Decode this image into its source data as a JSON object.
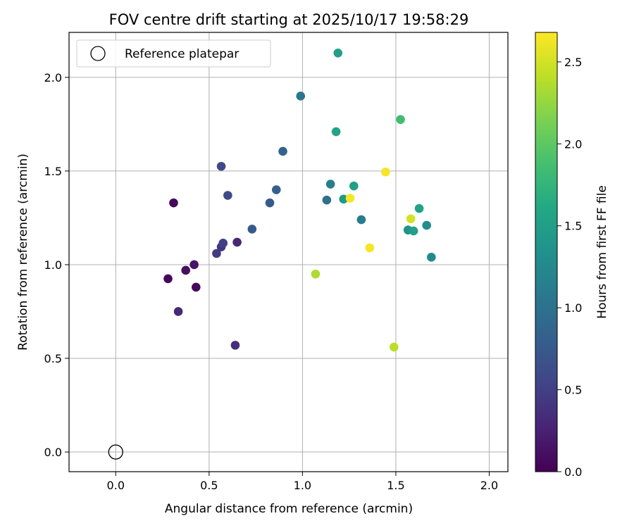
{
  "chart_data": {
    "type": "scatter",
    "title": "FOV centre drift starting at 2025/10/17 19:58:29",
    "xlabel": "Angular distance from reference (arcmin)",
    "ylabel": "Rotation from reference (arcmin)",
    "xlim": [
      -0.25,
      2.1
    ],
    "ylim": [
      -0.105,
      2.24
    ],
    "x_ticks": [
      0.0,
      0.5,
      1.0,
      1.5,
      2.0
    ],
    "x_tick_labels": [
      "0.0",
      "0.5",
      "1.0",
      "1.5",
      "2.0"
    ],
    "y_ticks": [
      0.0,
      0.5,
      1.0,
      1.5,
      2.0
    ],
    "y_tick_labels": [
      "0.0",
      "0.5",
      "1.0",
      "1.5",
      "2.0"
    ],
    "grid": true,
    "legend": {
      "placement": "top-left",
      "entries": [
        "Reference platepar"
      ]
    },
    "reference_point": {
      "x": 0.0,
      "y": 0.0
    },
    "colorbar": {
      "label": "Hours from first FF file",
      "colormap": "viridis",
      "range": [
        0.0,
        2.68
      ],
      "ticks": [
        0.0,
        0.5,
        1.0,
        1.5,
        2.0,
        2.5
      ],
      "tick_labels": [
        "0.0",
        "0.5",
        "1.0",
        "1.5",
        "2.0",
        "2.5"
      ]
    },
    "points": [
      {
        "x": 0.31,
        "y": 1.33,
        "c": 0.05
      },
      {
        "x": 0.28,
        "y": 0.925,
        "c": 0.05
      },
      {
        "x": 0.43,
        "y": 0.88,
        "c": 0.05
      },
      {
        "x": 0.375,
        "y": 0.97,
        "c": 0.1
      },
      {
        "x": 0.42,
        "y": 1.0,
        "c": 0.15
      },
      {
        "x": 0.335,
        "y": 0.75,
        "c": 0.3
      },
      {
        "x": 0.65,
        "y": 1.12,
        "c": 0.3
      },
      {
        "x": 0.64,
        "y": 0.57,
        "c": 0.35
      },
      {
        "x": 0.565,
        "y": 1.095,
        "c": 0.4
      },
      {
        "x": 0.54,
        "y": 1.06,
        "c": 0.45
      },
      {
        "x": 0.575,
        "y": 1.115,
        "c": 0.5
      },
      {
        "x": 0.565,
        "y": 1.525,
        "c": 0.6
      },
      {
        "x": 0.6,
        "y": 1.37,
        "c": 0.6
      },
      {
        "x": 0.73,
        "y": 1.19,
        "c": 0.75
      },
      {
        "x": 0.825,
        "y": 1.33,
        "c": 0.75
      },
      {
        "x": 0.86,
        "y": 1.4,
        "c": 0.8
      },
      {
        "x": 0.895,
        "y": 1.605,
        "c": 0.85
      },
      {
        "x": 0.99,
        "y": 1.9,
        "c": 1.05
      },
      {
        "x": 1.15,
        "y": 1.43,
        "c": 1.15
      },
      {
        "x": 1.13,
        "y": 1.345,
        "c": 1.0
      },
      {
        "x": 1.315,
        "y": 1.24,
        "c": 1.1
      },
      {
        "x": 1.69,
        "y": 1.04,
        "c": 1.25
      },
      {
        "x": 1.665,
        "y": 1.21,
        "c": 1.3
      },
      {
        "x": 1.565,
        "y": 1.185,
        "c": 1.35
      },
      {
        "x": 1.22,
        "y": 1.35,
        "c": 1.45
      },
      {
        "x": 1.275,
        "y": 1.42,
        "c": 1.5
      },
      {
        "x": 1.595,
        "y": 1.18,
        "c": 1.5
      },
      {
        "x": 1.625,
        "y": 1.3,
        "c": 1.55
      },
      {
        "x": 1.18,
        "y": 1.71,
        "c": 1.55
      },
      {
        "x": 1.19,
        "y": 2.13,
        "c": 1.5
      },
      {
        "x": 1.525,
        "y": 1.775,
        "c": 1.85
      },
      {
        "x": 1.07,
        "y": 0.95,
        "c": 2.35
      },
      {
        "x": 1.49,
        "y": 0.56,
        "c": 2.4
      },
      {
        "x": 1.58,
        "y": 1.245,
        "c": 2.5
      },
      {
        "x": 1.255,
        "y": 1.355,
        "c": 2.65
      },
      {
        "x": 1.445,
        "y": 1.495,
        "c": 2.65
      },
      {
        "x": 1.36,
        "y": 1.09,
        "c": 2.65
      }
    ]
  }
}
